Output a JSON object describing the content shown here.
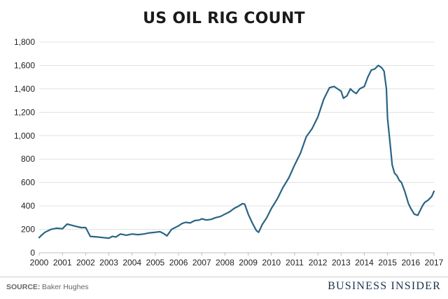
{
  "source": {
    "prefix": "SOURCE:",
    "text": "Baker Hughes"
  },
  "brand": "BUSINESS INSIDER",
  "colors": {
    "line": "#2a6384",
    "grid": "#e1e1e1",
    "axis": "#bdbdbd"
  },
  "chart_data": {
    "type": "line",
    "title": "US OIL RIG COUNT",
    "xlabel": "",
    "ylabel": "",
    "grid": true,
    "xlim": [
      2000,
      2017
    ],
    "ylim": [
      0,
      1800
    ],
    "y_ticks": [
      "0",
      "200",
      "400",
      "600",
      "800",
      "1,000",
      "1,200",
      "1,400",
      "1,600",
      "1,800"
    ],
    "y_tick_values": [
      0,
      200,
      400,
      600,
      800,
      1000,
      1200,
      1400,
      1600,
      1800
    ],
    "x_ticks": [
      "2000",
      "2001",
      "2002",
      "2003",
      "2004",
      "2005",
      "2006",
      "2007",
      "2008",
      "2009",
      "2010",
      "2011",
      "2012",
      "2013",
      "2014",
      "2015",
      "2016",
      "2017"
    ],
    "x_tick_values": [
      2000,
      2001,
      2002,
      2003,
      2004,
      2005,
      2006,
      2007,
      2008,
      2009,
      2010,
      2011,
      2012,
      2013,
      2014,
      2015,
      2016,
      2017
    ],
    "series": [
      {
        "x": [
          2000.0,
          2000.1,
          2000.25,
          2000.5,
          2000.75,
          2001.0,
          2001.2,
          2001.4,
          2001.6,
          2001.8,
          2002.0,
          2002.2,
          2002.5,
          2002.75,
          2003.0,
          2003.15,
          2003.3,
          2003.5,
          2003.75,
          2004.0,
          2004.25,
          2004.5,
          2004.75,
          2005.0,
          2005.2,
          2005.35,
          2005.5,
          2005.7,
          2005.9,
          2006.0,
          2006.15,
          2006.3,
          2006.5,
          2006.7,
          2006.9,
          2007.0,
          2007.2,
          2007.4,
          2007.6,
          2007.8,
          2008.0,
          2008.2,
          2008.4,
          2008.6,
          2008.75,
          2008.85,
          2009.0,
          2009.2,
          2009.35,
          2009.45,
          2009.6,
          2009.8,
          2010.0,
          2010.25,
          2010.5,
          2010.75,
          2011.0,
          2011.25,
          2011.5,
          2011.75,
          2012.0,
          2012.25,
          2012.5,
          2012.7,
          2012.85,
          2013.0,
          2013.1,
          2013.25,
          2013.4,
          2013.5,
          2013.65,
          2013.8,
          2014.0,
          2014.15,
          2014.3,
          2014.45,
          2014.6,
          2014.75,
          2014.85,
          2014.95,
          2015.0,
          2015.1,
          2015.2,
          2015.3,
          2015.4,
          2015.5,
          2015.6,
          2015.75,
          2015.9,
          2016.0,
          2016.15,
          2016.3,
          2016.4,
          2016.5,
          2016.6,
          2016.75,
          2016.9,
          2017.0
        ],
        "values": [
          130,
          150,
          175,
          200,
          210,
          205,
          245,
          235,
          225,
          215,
          215,
          140,
          135,
          130,
          125,
          140,
          135,
          160,
          150,
          160,
          155,
          160,
          170,
          175,
          180,
          165,
          145,
          200,
          220,
          230,
          250,
          260,
          255,
          275,
          280,
          290,
          280,
          285,
          300,
          310,
          330,
          350,
          380,
          400,
          420,
          415,
          330,
          245,
          190,
          175,
          240,
          300,
          380,
          460,
          560,
          640,
          750,
          850,
          990,
          1060,
          1160,
          1310,
          1410,
          1420,
          1400,
          1380,
          1320,
          1340,
          1400,
          1380,
          1360,
          1400,
          1420,
          1500,
          1560,
          1570,
          1600,
          1580,
          1550,
          1400,
          1150,
          950,
          750,
          680,
          660,
          620,
          600,
          520,
          420,
          380,
          330,
          320,
          360,
          400,
          430,
          450,
          480,
          525
        ]
      }
    ]
  }
}
